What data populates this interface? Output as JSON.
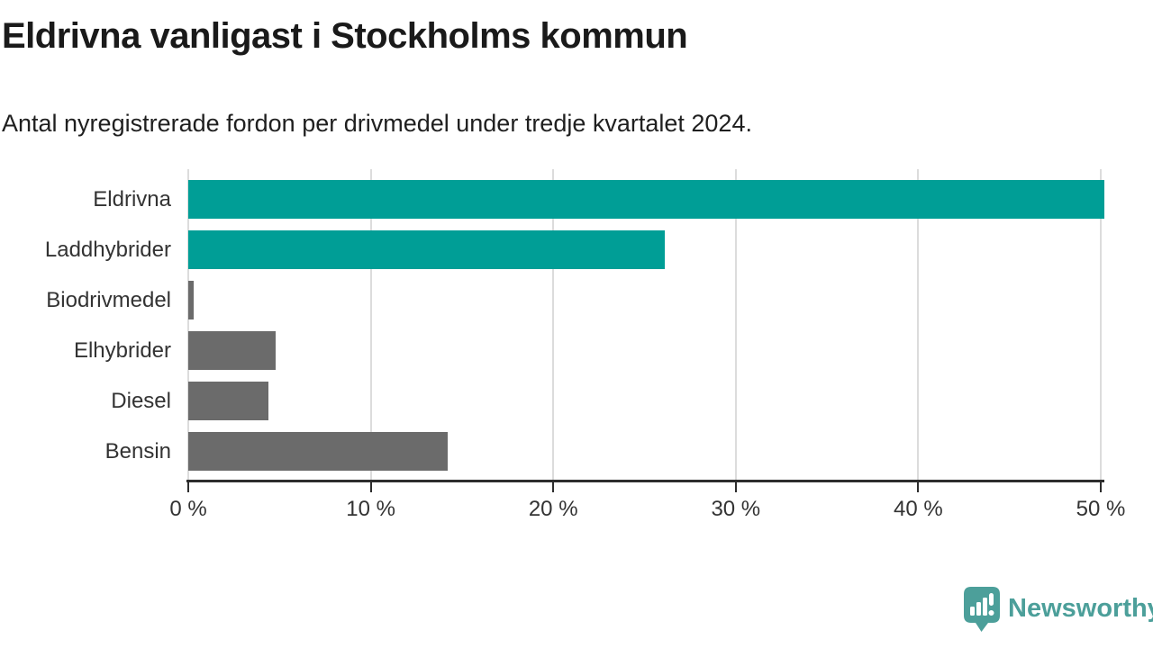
{
  "page": {
    "title": "Eldrivna vanligast i Stockholms kommun",
    "subtitle": "Antal nyregistrerade fordon per drivmedel under tredje kvartalet 2024."
  },
  "chart_data": {
    "type": "bar",
    "orientation": "horizontal",
    "title": "Eldrivna vanligast i Stockholms kommun",
    "subtitle": "Antal nyregistrerade fordon per drivmedel under tredje kvartalet 2024.",
    "categories": [
      "Eldrivna",
      "Laddhybrider",
      "Biodrivmedel",
      "Elhybrider",
      "Diesel",
      "Bensin"
    ],
    "values": [
      50.2,
      26.1,
      0.3,
      4.8,
      4.4,
      14.2
    ],
    "unit": "%",
    "bar_colors": [
      "#009e96",
      "#009e96",
      "#6b6b6b",
      "#6b6b6b",
      "#6b6b6b",
      "#6b6b6b"
    ],
    "highlight_color": "#009e96",
    "default_color": "#6b6b6b",
    "xlabel": "",
    "ylabel": "",
    "xlim": [
      0,
      50
    ],
    "x_tick_values": [
      0,
      10,
      20,
      30,
      40,
      50
    ],
    "x_tick_labels": [
      "0 %",
      "10 %",
      "20 %",
      "30 %",
      "40 %",
      "50 %"
    ],
    "grid": "vertical-gridlines",
    "legend": "none"
  },
  "branding": {
    "logo_text": "Newsworthy",
    "logo_color": "#4c9f9a",
    "logo_icon": "newsworthy-speech-bubble-barchart-icon"
  }
}
